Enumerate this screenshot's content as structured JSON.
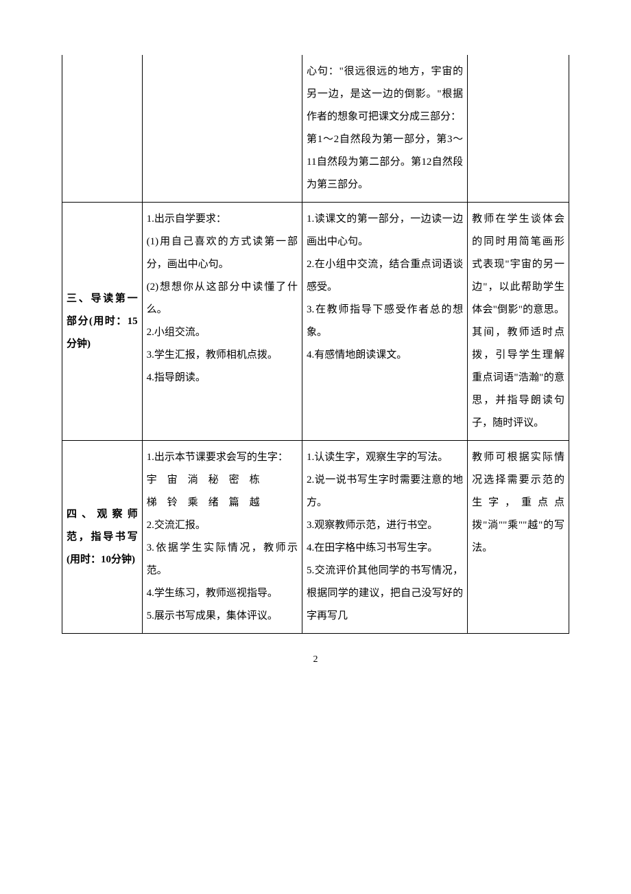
{
  "page": {
    "number": "2",
    "background_color": "#ffffff",
    "text_color": "#000000",
    "border_color": "#000000",
    "font_family": "SimSun",
    "body_fontsize": 15,
    "line_height": 2.2
  },
  "table": {
    "columns": [
      {
        "width_percent": 15,
        "align": "left"
      },
      {
        "width_percent": 30,
        "align": "left"
      },
      {
        "width_percent": 31,
        "align": "left"
      },
      {
        "width_percent": 19,
        "align": "left"
      }
    ],
    "rows": [
      {
        "no_top_border": true,
        "cells": {
          "section": "",
          "teacher": "",
          "student": "心句：\"很远很远的地方，宇宙的另一边，是这一边的倒影。\"根据作者的想象可把课文分成三部分：\n第1～2自然段为第一部分，第3～11自然段为第二部分。第12自然段为第三部分。",
          "notes": ""
        }
      },
      {
        "cells": {
          "section": "三、导读第一部分(用时：15分钟)",
          "teacher": "1.出示自学要求：\n(1)用自己喜欢的方式读第一部分，画出中心句。\n(2)想想你从这部分中读懂了什么。\n2.小组交流。\n3.学生汇报，教师相机点拨。\n4.指导朗读。",
          "student": "1.读课文的第一部分，一边读一边画出中心句。\n2.在小组中交流，结合重点词语谈感受。\n3.在教师指导下感受作者总的想象。\n4.有感情地朗读课文。",
          "notes": "教师在学生谈体会的同时用简笔画形式表现\"宇宙的另一边\"，以此帮助学生体会\"倒影\"的意思。其间，教师适时点拨，引导学生理解重点词语\"浩瀚\"的意思，并指导朗读句子，随时评议。"
        }
      },
      {
        "cells": {
          "section": "四、观察师范，指导书写(用时：10分钟)",
          "teacher_lines": [
            "1.出示本节课要求会写的生字：",
            "宇　宙　淌　秘　密　栋",
            "梯　铃　乘　绪　篇　越",
            "2.交流汇报。",
            "3.依据学生实际情况，教师示范。",
            "4.学生练习，教师巡视指导。",
            "5.展示书写成果，集体评议。"
          ],
          "student": "1.认读生字，观察生字的写法。\n2.说一说书写生字时需要注意的地方。\n3.观察教师示范，进行书空。\n4.在田字格中练习书写生字。\n5.交流评价其他同学的书写情况，根据同学的建议，把自己没写好的字再写几",
          "notes": "教师可根据实际情况选择需要示范的生字，重点点拨\"淌\"\"乘\"\"越\"的写法。"
        }
      }
    ]
  }
}
